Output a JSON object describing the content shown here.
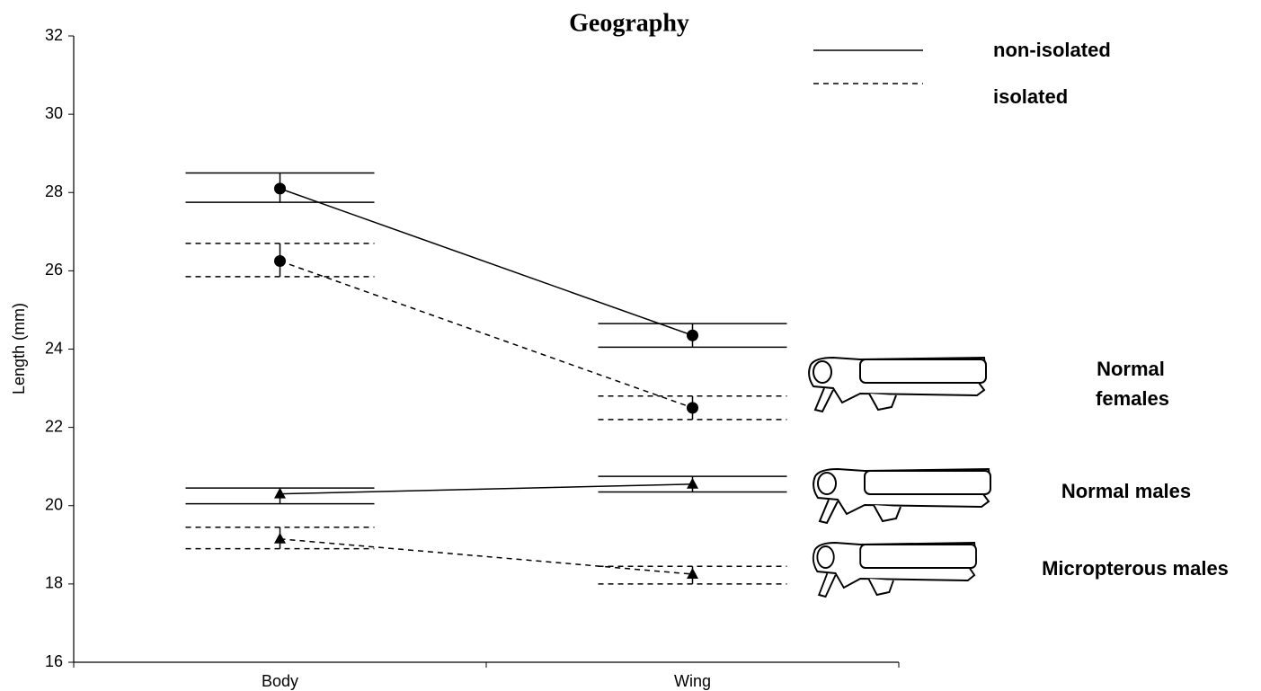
{
  "chart_data": {
    "type": "interval-line",
    "title": "Geography",
    "y_label": "Length (mm)",
    "categories": [
      "Body",
      "Wing"
    ],
    "ylim": [
      16,
      32
    ],
    "yticks": [
      16,
      18,
      20,
      22,
      24,
      26,
      28,
      30,
      32
    ],
    "legend": [
      {
        "name": "non-isolated",
        "dashed": false
      },
      {
        "name": "isolated",
        "dashed": true
      }
    ],
    "series": [
      {
        "dashed": false,
        "marker": "circle",
        "values": [
          28.1,
          24.35
        ],
        "lower": [
          27.75,
          24.05
        ],
        "upper": [
          28.5,
          24.65
        ]
      },
      {
        "dashed": true,
        "marker": "circle",
        "values": [
          26.25,
          22.5
        ],
        "lower": [
          25.85,
          22.2
        ],
        "upper": [
          26.7,
          22.8
        ]
      },
      {
        "dashed": false,
        "marker": "triangle",
        "values": [
          20.3,
          20.55
        ],
        "lower": [
          20.05,
          20.35
        ],
        "upper": [
          20.45,
          20.75
        ]
      },
      {
        "dashed": true,
        "marker": "triangle",
        "values": [
          19.15,
          18.25
        ],
        "lower": [
          18.9,
          18.0
        ],
        "upper": [
          19.45,
          18.45
        ]
      }
    ],
    "annotations": [
      [
        "Normal",
        "females"
      ],
      [
        "Normal males"
      ],
      [
        "Micropterous males"
      ]
    ]
  }
}
